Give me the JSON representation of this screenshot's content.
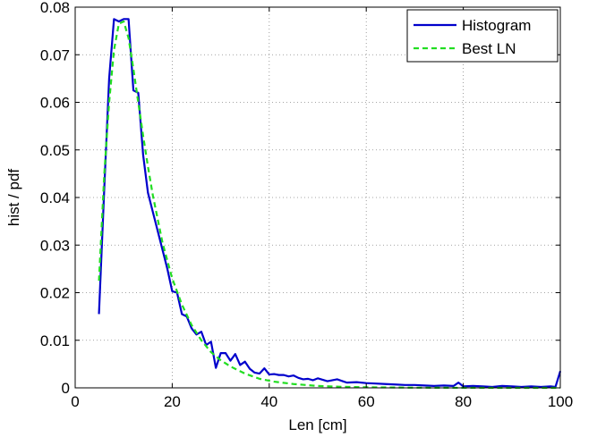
{
  "chart_data": {
    "type": "line",
    "xlabel": "Len [cm]",
    "ylabel": "hist / pdf",
    "xlim": [
      0,
      100
    ],
    "ylim": [
      0,
      0.08
    ],
    "x_ticks": [
      "0",
      "20",
      "40",
      "60",
      "80",
      "100"
    ],
    "y_ticks": [
      "0",
      "0.01",
      "0.02",
      "0.03",
      "0.04",
      "0.05",
      "0.06",
      "0.07",
      "0.08"
    ],
    "grid": true,
    "legend_position": "top-right",
    "series": [
      {
        "name": "Histogram",
        "color": "#0000cc",
        "dash": "solid",
        "x": [
          4.9,
          6,
          7,
          8,
          9,
          10,
          11,
          12,
          13,
          14,
          15,
          16,
          17,
          18,
          19,
          20,
          21,
          22,
          23,
          24,
          25,
          26,
          27,
          28,
          29,
          30,
          31,
          32,
          33,
          34,
          35,
          36,
          37,
          38,
          39,
          40,
          41,
          42,
          43,
          44,
          45,
          46,
          47,
          48,
          49,
          50,
          52,
          54,
          56,
          58,
          60,
          62,
          64,
          66,
          68,
          70,
          72,
          74,
          76,
          78,
          79,
          80,
          82,
          84,
          86,
          88,
          90,
          92,
          94,
          96,
          98,
          99,
          100
        ],
        "y": [
          0.0155,
          0.042,
          0.065,
          0.0775,
          0.077,
          0.0775,
          0.0775,
          0.0625,
          0.062,
          0.049,
          0.041,
          0.037,
          0.033,
          0.029,
          0.025,
          0.0203,
          0.02,
          0.0155,
          0.015,
          0.0125,
          0.0112,
          0.0118,
          0.009,
          0.0097,
          0.0042,
          0.0073,
          0.0073,
          0.0057,
          0.0071,
          0.0048,
          0.0055,
          0.004,
          0.0032,
          0.003,
          0.0041,
          0.0028,
          0.0029,
          0.0027,
          0.0027,
          0.0024,
          0.0026,
          0.0021,
          0.0018,
          0.0019,
          0.0016,
          0.002,
          0.0014,
          0.0018,
          0.0011,
          0.0012,
          0.001,
          0.0009,
          0.0008,
          0.0007,
          0.0006,
          0.0006,
          0.0005,
          0.0004,
          0.0005,
          0.0004,
          0.0011,
          0.0003,
          0.0004,
          0.0003,
          0.0002,
          0.0004,
          0.0003,
          0.0002,
          0.0003,
          0.0002,
          0.0003,
          0.0002,
          0.0035
        ]
      },
      {
        "name": "Best LN",
        "color": "#22dd22",
        "dash": "dashed",
        "x": [
          4.9,
          6,
          7,
          8,
          9,
          10,
          11,
          12,
          13,
          14,
          15,
          16,
          18,
          20,
          22,
          24,
          26,
          28,
          30,
          32,
          35,
          38,
          41,
          45,
          50,
          55,
          60,
          70,
          80,
          90,
          100
        ],
        "y": [
          0.0225,
          0.045,
          0.06,
          0.071,
          0.0765,
          0.077,
          0.0735,
          0.067,
          0.06,
          0.053,
          0.0465,
          0.0405,
          0.0305,
          0.023,
          0.0175,
          0.0132,
          0.01,
          0.0075,
          0.0058,
          0.0045,
          0.003,
          0.0019,
          0.0013,
          0.0008,
          0.0004,
          0.00022,
          0.00012,
          4e-05,
          1e-05,
          5e-06,
          2e-06
        ]
      }
    ]
  }
}
